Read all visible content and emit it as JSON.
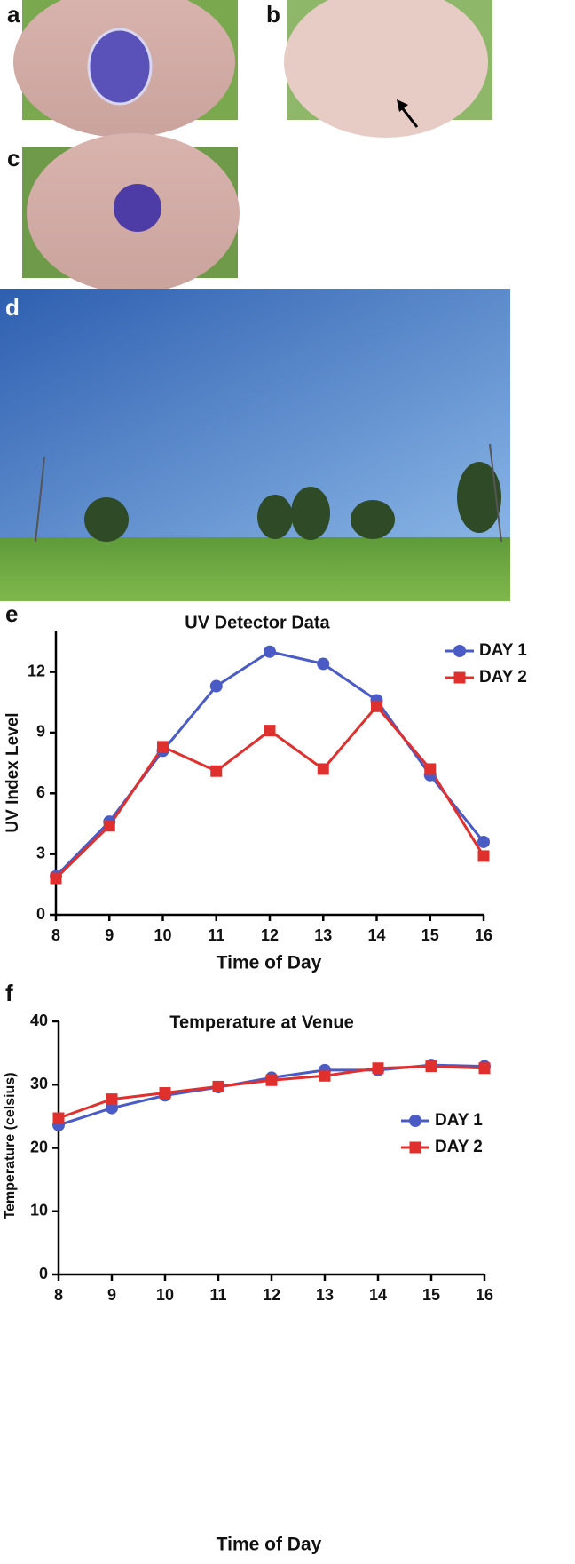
{
  "panel_labels": [
    "a",
    "b",
    "c",
    "d",
    "e",
    "f"
  ],
  "chart_data": [
    {
      "type": "line",
      "title": "UV Detector Data",
      "x_label": "Time of Day",
      "y_label": "UV Index Level",
      "x": [
        8,
        9,
        10,
        11,
        12,
        13,
        14,
        15,
        16
      ],
      "series": [
        {
          "name": "DAY 1",
          "color": "#4a5bc6",
          "marker": "circle",
          "values": [
            1.9,
            4.6,
            8.1,
            11.3,
            13.0,
            12.4,
            10.6,
            6.9,
            3.6
          ]
        },
        {
          "name": "DAY 2",
          "color": "#e0302e",
          "marker": "square",
          "values": [
            1.8,
            4.4,
            8.3,
            7.1,
            9.1,
            7.2,
            10.3,
            7.2,
            2.9
          ]
        }
      ],
      "xlim": [
        8,
        16
      ],
      "xticks": [
        8,
        9,
        10,
        11,
        12,
        13,
        14,
        15,
        16
      ],
      "ylim": [
        0,
        14
      ],
      "yticks": [
        0,
        3,
        6,
        9,
        12
      ],
      "grid": false,
      "legend": "upper right"
    },
    {
      "type": "line",
      "title": "Temperature at Venue",
      "x_label": "Time of Day",
      "y_label": "Temperature (celsius)",
      "x": [
        8,
        9,
        10,
        11,
        12,
        13,
        14,
        15,
        16
      ],
      "series": [
        {
          "name": "DAY 1",
          "color": "#4a5bc6",
          "marker": "circle",
          "values": [
            23.6,
            26.3,
            28.3,
            29.6,
            31.1,
            32.3,
            32.3,
            33.1,
            32.9
          ]
        },
        {
          "name": "DAY 2",
          "color": "#e0302e",
          "marker": "square",
          "values": [
            24.7,
            27.7,
            28.7,
            29.7,
            30.7,
            31.4,
            32.6,
            32.9,
            32.6
          ]
        }
      ],
      "xlim": [
        8,
        16
      ],
      "xticks": [
        8,
        9,
        10,
        11,
        12,
        13,
        14,
        15,
        16
      ],
      "ylim": [
        0,
        40
      ],
      "yticks": [
        0,
        10,
        20,
        30,
        40
      ],
      "grid": false,
      "legend": "center right"
    }
  ]
}
